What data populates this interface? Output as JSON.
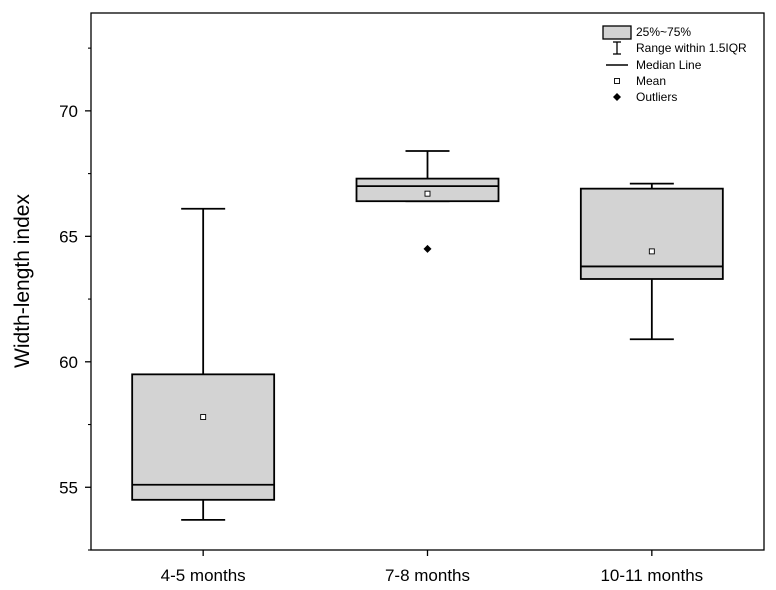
{
  "chart_data": {
    "type": "box",
    "ylabel": "Width-length index",
    "xlabel": "",
    "ylim": [
      52.5,
      73.9
    ],
    "yticks": [
      55,
      60,
      65,
      70
    ],
    "yticklabels": [
      "55",
      "60",
      "65",
      "70"
    ],
    "categories": [
      "4-5 months",
      "7-8 months",
      "10-11 months"
    ],
    "boxes": [
      {
        "category": "4-5 months",
        "whisker_low": 53.7,
        "q1": 54.5,
        "median": 55.1,
        "q3": 59.5,
        "whisker_high": 66.1,
        "mean": 57.8,
        "outliers": []
      },
      {
        "category": "7-8 months",
        "whisker_low": 66.4,
        "q1": 66.4,
        "median": 67.0,
        "q3": 67.3,
        "whisker_high": 68.4,
        "mean": 66.7,
        "outliers": [
          64.5
        ]
      },
      {
        "category": "10-11 months",
        "whisker_low": 60.9,
        "q1": 63.3,
        "median": 63.8,
        "q3": 66.9,
        "whisker_high": 67.1,
        "mean": 64.4,
        "outliers": []
      }
    ],
    "legend": {
      "position": "top-right",
      "items": [
        {
          "label": "25%~75%",
          "symbol": "box"
        },
        {
          "label": "Range within 1.5IQR",
          "symbol": "whisker"
        },
        {
          "label": "Median Line",
          "symbol": "line"
        },
        {
          "label": "Mean",
          "symbol": "open-square"
        },
        {
          "label": "Outliers",
          "symbol": "filled-diamond"
        }
      ]
    },
    "colors": {
      "box_fill": "#d3d3d3",
      "stroke": "#000000",
      "background": "#ffffff"
    }
  }
}
